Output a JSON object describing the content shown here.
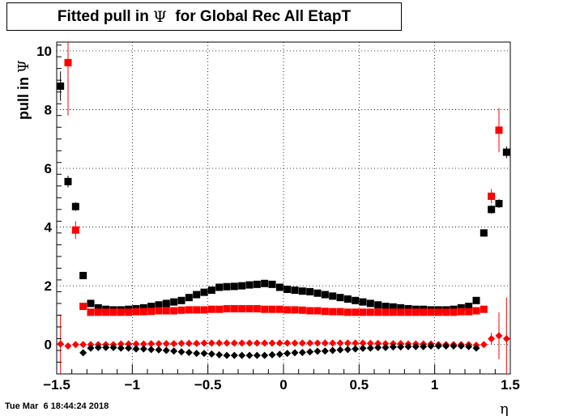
{
  "title": {
    "prefix": "Fitted pull in ",
    "symbol": "Ψ",
    "suffix": "  for Global Rec All EtapT"
  },
  "timestamp": "Tue Mar  6 18:44:24 2018",
  "colors": {
    "black": "#000000",
    "red": "#ff0000"
  },
  "chart_data": {
    "type": "scatter",
    "title": "Fitted pull in Ψ for Global Rec All EtapT",
    "xlabel": "η",
    "ylabel": {
      "text": "pull in ",
      "symbol": "Ψ"
    },
    "xlim": [
      -1.5,
      1.5
    ],
    "ylim": [
      -1.0,
      10.3
    ],
    "xticks": [
      -1.5,
      -1,
      -0.5,
      0,
      0.5,
      1,
      1.5
    ],
    "xtick_labels": [
      "−1.5",
      "−1",
      "−0.5",
      "0",
      "0.5",
      "1",
      "1.5"
    ],
    "yticks": [
      0,
      2,
      4,
      6,
      8,
      10
    ],
    "ytick_labels": [
      "0",
      "2",
      "4",
      "6",
      "8",
      "10"
    ],
    "grid": true,
    "series": [
      {
        "marker": "square",
        "color": "#000000",
        "x": [
          -1.475,
          -1.425,
          -1.375,
          -1.325,
          -1.275,
          -1.225,
          -1.175,
          -1.125,
          -1.075,
          -1.025,
          -0.975,
          -0.925,
          -0.875,
          -0.825,
          -0.775,
          -0.725,
          -0.675,
          -0.625,
          -0.575,
          -0.525,
          -0.475,
          -0.425,
          -0.375,
          -0.325,
          -0.275,
          -0.225,
          -0.175,
          -0.125,
          -0.075,
          -0.025,
          0.025,
          0.075,
          0.125,
          0.175,
          0.225,
          0.275,
          0.325,
          0.375,
          0.425,
          0.475,
          0.525,
          0.575,
          0.625,
          0.675,
          0.725,
          0.775,
          0.825,
          0.875,
          0.925,
          0.975,
          1.025,
          1.075,
          1.125,
          1.175,
          1.225,
          1.275,
          1.325,
          1.375,
          1.425,
          1.475
        ],
        "y": [
          8.8,
          5.55,
          4.7,
          2.35,
          1.4,
          1.25,
          1.2,
          1.18,
          1.18,
          1.2,
          1.22,
          1.25,
          1.3,
          1.35,
          1.4,
          1.45,
          1.5,
          1.6,
          1.7,
          1.78,
          1.85,
          1.95,
          1.97,
          1.98,
          2.0,
          2.03,
          2.05,
          2.08,
          2.05,
          1.95,
          1.88,
          1.85,
          1.82,
          1.8,
          1.75,
          1.7,
          1.65,
          1.6,
          1.55,
          1.5,
          1.45,
          1.4,
          1.35,
          1.3,
          1.28,
          1.25,
          1.22,
          1.2,
          1.2,
          1.18,
          1.18,
          1.18,
          1.2,
          1.25,
          1.3,
          1.5,
          3.8,
          4.6,
          4.8,
          6.55
        ],
        "yerr": [
          0.5,
          0.2,
          0.15,
          0.08,
          0.03,
          0.03,
          0.03,
          0.03,
          0.03,
          0.03,
          0.03,
          0.03,
          0.03,
          0.03,
          0.03,
          0.03,
          0.03,
          0.03,
          0.03,
          0.03,
          0.03,
          0.03,
          0.03,
          0.03,
          0.03,
          0.03,
          0.03,
          0.03,
          0.03,
          0.03,
          0.03,
          0.03,
          0.03,
          0.03,
          0.03,
          0.03,
          0.03,
          0.03,
          0.03,
          0.03,
          0.03,
          0.03,
          0.03,
          0.03,
          0.03,
          0.03,
          0.03,
          0.03,
          0.03,
          0.03,
          0.03,
          0.03,
          0.03,
          0.03,
          0.03,
          0.05,
          0.1,
          0.15,
          0.15,
          0.2
        ]
      },
      {
        "marker": "square",
        "color": "#ff0000",
        "x": [
          -1.425,
          -1.375,
          -1.325,
          -1.275,
          -1.225,
          -1.175,
          -1.125,
          -1.075,
          -1.025,
          -0.975,
          -0.925,
          -0.875,
          -0.825,
          -0.775,
          -0.725,
          -0.675,
          -0.625,
          -0.575,
          -0.525,
          -0.475,
          -0.425,
          -0.375,
          -0.325,
          -0.275,
          -0.225,
          -0.175,
          -0.125,
          -0.075,
          -0.025,
          0.025,
          0.075,
          0.125,
          0.175,
          0.225,
          0.275,
          0.325,
          0.375,
          0.425,
          0.475,
          0.525,
          0.575,
          0.625,
          0.675,
          0.725,
          0.775,
          0.825,
          0.875,
          0.925,
          0.975,
          1.025,
          1.075,
          1.125,
          1.175,
          1.225,
          1.275,
          1.325,
          1.375,
          1.425
        ],
        "y": [
          9.6,
          3.9,
          1.3,
          1.1,
          1.1,
          1.1,
          1.1,
          1.1,
          1.1,
          1.12,
          1.12,
          1.13,
          1.15,
          1.15,
          1.15,
          1.17,
          1.18,
          1.18,
          1.18,
          1.2,
          1.2,
          1.22,
          1.22,
          1.22,
          1.22,
          1.22,
          1.2,
          1.2,
          1.2,
          1.18,
          1.18,
          1.17,
          1.15,
          1.15,
          1.13,
          1.12,
          1.12,
          1.1,
          1.1,
          1.1,
          1.1,
          1.1,
          1.1,
          1.1,
          1.1,
          1.1,
          1.1,
          1.1,
          1.1,
          1.1,
          1.1,
          1.1,
          1.12,
          1.12,
          1.15,
          1.2,
          5.05,
          7.3
        ],
        "yerr": [
          1.8,
          0.3,
          0.05,
          0.03,
          0.03,
          0.03,
          0.03,
          0.03,
          0.03,
          0.03,
          0.03,
          0.03,
          0.03,
          0.03,
          0.03,
          0.03,
          0.03,
          0.03,
          0.03,
          0.03,
          0.03,
          0.03,
          0.03,
          0.03,
          0.03,
          0.03,
          0.03,
          0.03,
          0.03,
          0.03,
          0.03,
          0.03,
          0.03,
          0.03,
          0.03,
          0.03,
          0.03,
          0.03,
          0.03,
          0.03,
          0.03,
          0.03,
          0.03,
          0.03,
          0.03,
          0.03,
          0.03,
          0.03,
          0.03,
          0.03,
          0.03,
          0.03,
          0.03,
          0.03,
          0.03,
          0.05,
          0.25,
          0.75
        ]
      },
      {
        "marker": "diamond",
        "color": "#ff0000",
        "x": [
          -1.475,
          -1.425,
          -1.375,
          -1.325,
          -1.275,
          -1.225,
          -1.175,
          -1.125,
          -1.075,
          -1.025,
          -0.975,
          -0.925,
          -0.875,
          -0.825,
          -0.775,
          -0.725,
          -0.675,
          -0.625,
          -0.575,
          -0.525,
          -0.475,
          -0.425,
          -0.375,
          -0.325,
          -0.275,
          -0.225,
          -0.175,
          -0.125,
          -0.075,
          -0.025,
          0.025,
          0.075,
          0.125,
          0.175,
          0.225,
          0.275,
          0.325,
          0.375,
          0.425,
          0.475,
          0.525,
          0.575,
          0.625,
          0.675,
          0.725,
          0.775,
          0.825,
          0.875,
          0.925,
          0.975,
          1.025,
          1.075,
          1.125,
          1.175,
          1.225,
          1.275,
          1.325,
          1.375,
          1.425,
          1.475
        ],
        "y": [
          0.02,
          -0.05,
          0.0,
          0.0,
          0.0,
          0.0,
          0.0,
          0.0,
          0.02,
          0.02,
          0.02,
          0.02,
          0.03,
          0.03,
          0.03,
          0.03,
          0.04,
          0.04,
          0.04,
          0.05,
          0.05,
          0.05,
          0.05,
          0.05,
          0.05,
          0.05,
          0.05,
          0.05,
          0.05,
          0.05,
          0.05,
          0.05,
          0.05,
          0.05,
          0.05,
          0.05,
          0.05,
          0.05,
          0.05,
          0.05,
          0.05,
          0.04,
          0.04,
          0.03,
          0.03,
          0.03,
          0.02,
          0.02,
          0.02,
          0.02,
          0.0,
          0.0,
          0.0,
          0.0,
          0.0,
          -0.02,
          0.0,
          0.2,
          0.3,
          0.2
        ],
        "yerr": [
          1.0,
          0.1,
          0.05,
          0.02,
          0.02,
          0.02,
          0.02,
          0.02,
          0.02,
          0.02,
          0.02,
          0.02,
          0.02,
          0.02,
          0.02,
          0.02,
          0.02,
          0.02,
          0.02,
          0.02,
          0.02,
          0.02,
          0.02,
          0.02,
          0.02,
          0.02,
          0.02,
          0.02,
          0.02,
          0.02,
          0.02,
          0.02,
          0.02,
          0.02,
          0.02,
          0.02,
          0.02,
          0.02,
          0.02,
          0.02,
          0.02,
          0.02,
          0.02,
          0.02,
          0.02,
          0.02,
          0.02,
          0.02,
          0.02,
          0.02,
          0.02,
          0.02,
          0.02,
          0.02,
          0.02,
          0.02,
          0.05,
          0.2,
          0.8,
          1.4
        ]
      },
      {
        "marker": "diamond",
        "color": "#000000",
        "x": [
          -1.325,
          -1.275,
          -1.225,
          -1.175,
          -1.125,
          -1.075,
          -1.025,
          -0.975,
          -0.925,
          -0.875,
          -0.825,
          -0.775,
          -0.725,
          -0.675,
          -0.625,
          -0.575,
          -0.525,
          -0.475,
          -0.425,
          -0.375,
          -0.325,
          -0.275,
          -0.225,
          -0.175,
          -0.125,
          -0.075,
          -0.025,
          0.025,
          0.075,
          0.125,
          0.175,
          0.225,
          0.275,
          0.325,
          0.375,
          0.425,
          0.475,
          0.525,
          0.575,
          0.625,
          0.675,
          0.725,
          0.775,
          0.825,
          0.875,
          0.925,
          0.975,
          1.025,
          1.075,
          1.125,
          1.175,
          1.225,
          1.275
        ],
        "y": [
          -0.28,
          -0.12,
          -0.1,
          -0.1,
          -0.1,
          -0.12,
          -0.12,
          -0.15,
          -0.15,
          -0.17,
          -0.18,
          -0.2,
          -0.22,
          -0.25,
          -0.27,
          -0.3,
          -0.3,
          -0.32,
          -0.35,
          -0.37,
          -0.37,
          -0.37,
          -0.37,
          -0.37,
          -0.37,
          -0.35,
          -0.33,
          -0.3,
          -0.28,
          -0.27,
          -0.25,
          -0.23,
          -0.22,
          -0.2,
          -0.18,
          -0.17,
          -0.15,
          -0.13,
          -0.12,
          -0.1,
          -0.1,
          -0.08,
          -0.08,
          -0.07,
          -0.07,
          -0.07,
          -0.05,
          -0.05,
          -0.05,
          -0.05,
          -0.05,
          -0.07,
          -0.12
        ],
        "yerr": [
          0.05,
          0.02,
          0.02,
          0.02,
          0.02,
          0.02,
          0.02,
          0.02,
          0.02,
          0.02,
          0.02,
          0.02,
          0.02,
          0.02,
          0.02,
          0.02,
          0.02,
          0.02,
          0.02,
          0.02,
          0.02,
          0.02,
          0.02,
          0.02,
          0.02,
          0.02,
          0.02,
          0.02,
          0.02,
          0.02,
          0.02,
          0.02,
          0.02,
          0.02,
          0.02,
          0.02,
          0.02,
          0.02,
          0.02,
          0.02,
          0.02,
          0.02,
          0.02,
          0.02,
          0.02,
          0.02,
          0.02,
          0.02,
          0.02,
          0.02,
          0.02,
          0.02,
          0.03
        ]
      }
    ]
  }
}
